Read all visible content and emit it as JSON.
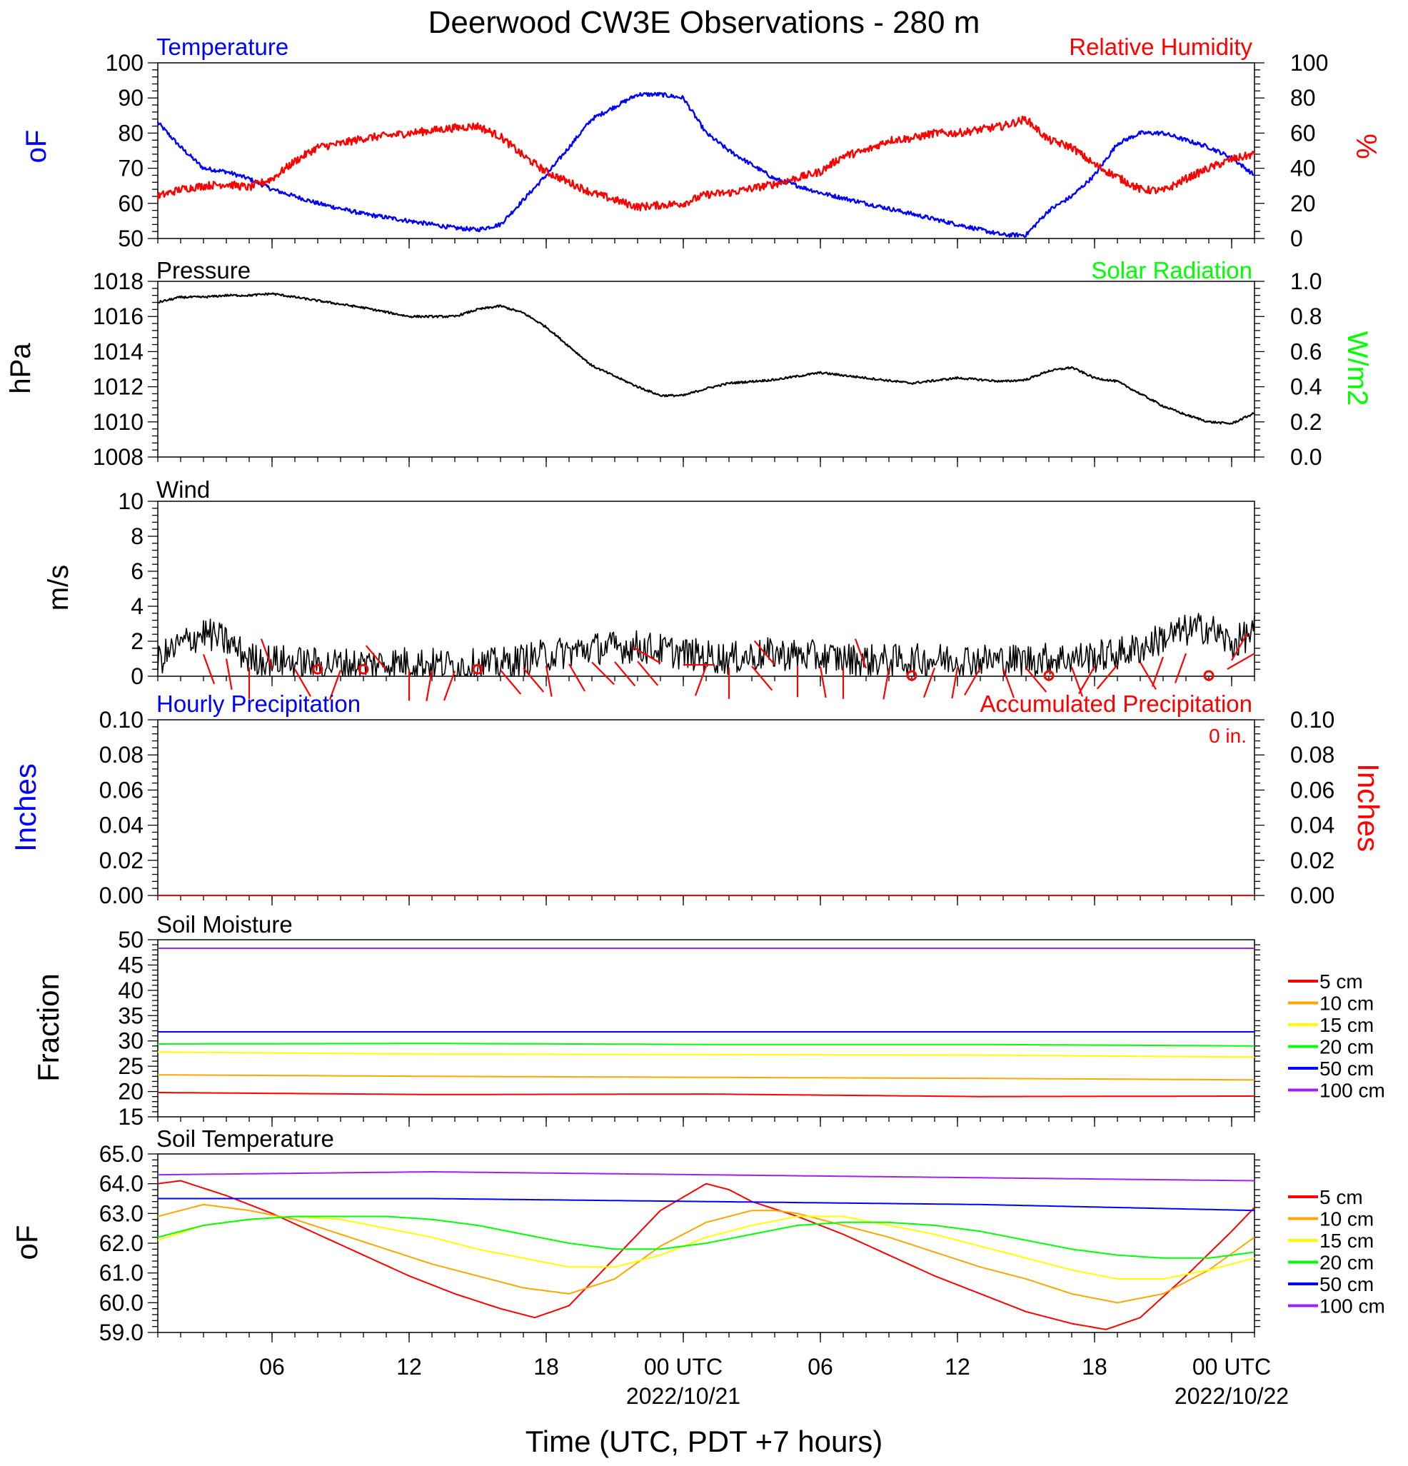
{
  "title": "Deerwood CW3E Observations - 280 m",
  "xlabel": "Time (UTC, PDT +7 hours)",
  "colors": {
    "temp": "#0000ff",
    "rh": "#ff0000",
    "pressure": "#000000",
    "solar": "#00ff00",
    "wind": "#000000",
    "barb": "#ff0000",
    "hourly": "#0000ff",
    "accum": "#ff0000"
  },
  "x_ticks": [
    {
      "hour": 6,
      "label": "06",
      "date": ""
    },
    {
      "hour": 12,
      "label": "12",
      "date": ""
    },
    {
      "hour": 18,
      "label": "18",
      "date": ""
    },
    {
      "hour": 24,
      "label": "00 UTC",
      "date": "2022/10/21"
    },
    {
      "hour": 30,
      "label": "06",
      "date": ""
    },
    {
      "hour": 36,
      "label": "12",
      "date": ""
    },
    {
      "hour": 42,
      "label": "18",
      "date": ""
    },
    {
      "hour": 48,
      "label": "00 UTC",
      "date": "2022/10/22"
    }
  ],
  "panels": {
    "temp_rh": {
      "left_title": "Temperature",
      "right_title": "Relative Humidity",
      "left_ylabel": "oF",
      "right_ylabel": "%",
      "left_ticks": [
        "50",
        "60",
        "70",
        "80",
        "90",
        "100"
      ],
      "right_ticks": [
        "0",
        "20",
        "40",
        "60",
        "80",
        "100"
      ]
    },
    "pressure": {
      "left_title": "Pressure",
      "right_title": "Solar Radiation",
      "left_ylabel": "hPa",
      "right_ylabel": "W/m2",
      "left_ticks": [
        "1008",
        "1010",
        "1012",
        "1014",
        "1016",
        "1018"
      ],
      "right_ticks": [
        "0.0",
        "0.2",
        "0.4",
        "0.6",
        "0.8",
        "1.0"
      ]
    },
    "wind": {
      "left_title": "Wind",
      "left_ylabel": "m/s",
      "left_ticks": [
        "0",
        "2",
        "4",
        "6",
        "8",
        "10"
      ]
    },
    "precip": {
      "left_title": "Hourly Precipitation",
      "right_title": "Accumulated Precipitation",
      "accum_total": "0 in.",
      "left_ylabel": "Inches",
      "right_ylabel": "Inches",
      "left_ticks": [
        "0.00",
        "0.02",
        "0.04",
        "0.06",
        "0.08",
        "0.10"
      ],
      "right_ticks": [
        "0.00",
        "0.02",
        "0.04",
        "0.06",
        "0.08",
        "0.10"
      ]
    },
    "soil_moisture": {
      "left_title": "Soil Moisture",
      "left_ylabel": "Fraction",
      "left_ticks": [
        "15",
        "20",
        "25",
        "30",
        "35",
        "40",
        "45",
        "50"
      ],
      "legend": [
        "5 cm",
        "10 cm",
        "15 cm",
        "20 cm",
        "50 cm",
        "100 cm"
      ]
    },
    "soil_temp": {
      "left_title": "Soil Temperature",
      "left_ylabel": "oF",
      "left_ticks": [
        "59.0",
        "60.0",
        "61.0",
        "62.0",
        "63.0",
        "64.0",
        "65.0"
      ],
      "legend": [
        "5 cm",
        "10 cm",
        "15 cm",
        "20 cm",
        "50 cm",
        "100 cm"
      ]
    }
  },
  "chart_data": [
    {
      "type": "line",
      "panel": "temp_rh",
      "x_unit": "hours since 2022-10-20 00 UTC",
      "xlim": [
        1,
        49
      ],
      "series": [
        {
          "name": "Temperature",
          "axis": "left",
          "ylim": [
            50,
            100
          ],
          "x": [
            1,
            2,
            3,
            4,
            5,
            6,
            8,
            10,
            12,
            14,
            15,
            16,
            18,
            20,
            22,
            23,
            24,
            25,
            26,
            28,
            30,
            32,
            34,
            36,
            38,
            39,
            40,
            41,
            42,
            43,
            44,
            45,
            46,
            47,
            48,
            49
          ],
          "values": [
            83,
            76,
            70,
            69,
            67,
            64,
            60,
            57,
            55,
            53,
            52.5,
            54,
            68,
            84,
            91,
            91,
            90,
            80,
            75,
            67,
            63,
            60,
            57,
            54,
            51,
            51,
            58,
            62,
            68,
            77,
            80,
            80,
            78,
            76,
            73,
            68
          ]
        },
        {
          "name": "Relative Humidity",
          "axis": "right",
          "ylim": [
            0,
            100
          ],
          "x": [
            1,
            2,
            3,
            4,
            5,
            6,
            7,
            8,
            9,
            10,
            12,
            14,
            15,
            16,
            17,
            18,
            20,
            22,
            23,
            24,
            25,
            26,
            28,
            30,
            31,
            32,
            33,
            34,
            35,
            36,
            38,
            39,
            40,
            41,
            42,
            43,
            44,
            45,
            46,
            47,
            48,
            49
          ],
          "values": [
            24,
            28,
            30,
            31,
            29,
            34,
            44,
            52,
            54,
            57,
            60,
            63,
            64,
            58,
            47,
            38,
            26,
            18,
            19,
            20,
            25,
            26,
            31,
            38,
            47,
            50,
            56,
            57,
            60,
            60,
            64,
            68,
            56,
            52,
            42,
            35,
            28,
            27,
            34,
            40,
            45,
            48
          ]
        }
      ]
    },
    {
      "type": "line",
      "panel": "pressure",
      "ylim": [
        1008,
        1018
      ],
      "series": [
        {
          "name": "Pressure",
          "x": [
            1,
            2,
            3,
            4,
            5,
            6,
            8,
            10,
            12,
            14,
            15,
            16,
            17,
            18,
            20,
            22,
            23,
            24,
            25,
            26,
            28,
            30,
            32,
            34,
            36,
            38,
            39,
            40,
            41,
            42,
            43,
            44,
            45,
            46,
            47,
            48,
            49
          ],
          "values": [
            1016.8,
            1017.1,
            1017.1,
            1017.2,
            1017.2,
            1017.3,
            1016.9,
            1016.5,
            1016.0,
            1016.0,
            1016.4,
            1016.6,
            1016.2,
            1015.4,
            1013.2,
            1012.0,
            1011.5,
            1011.5,
            1011.9,
            1012.2,
            1012.4,
            1012.8,
            1012.5,
            1012.2,
            1012.5,
            1012.3,
            1012.4,
            1012.9,
            1013.1,
            1012.5,
            1012.3,
            1011.6,
            1010.9,
            1010.4,
            1010.0,
            1009.9,
            1010.5
          ]
        }
      ]
    },
    {
      "type": "line",
      "panel": "wind",
      "ylim": [
        0,
        10
      ],
      "series": [
        {
          "name": "Wind",
          "x": [
            1,
            2,
            3,
            4,
            5,
            6,
            8,
            10,
            12,
            14,
            16,
            18,
            20,
            22,
            24,
            26,
            28,
            30,
            32,
            34,
            36,
            38,
            40,
            42,
            43,
            44,
            45,
            46,
            47,
            48,
            49
          ],
          "values": [
            0.9,
            1.8,
            2.5,
            2.0,
            1.0,
            0.9,
            0.7,
            0.7,
            0.8,
            0.6,
            0.7,
            1.2,
            1.6,
            1.7,
            1.3,
            1.0,
            1.3,
            1.1,
            0.9,
            0.9,
            1.0,
            0.9,
            1.0,
            1.1,
            1.3,
            1.6,
            2.2,
            2.6,
            2.8,
            1.8,
            2.6
          ]
        }
      ]
    },
    {
      "type": "line",
      "panel": "precip",
      "ylim": [
        0,
        0.1
      ],
      "series": [
        {
          "name": "Hourly Precipitation",
          "x": [
            1,
            49
          ],
          "values": [
            0,
            0
          ]
        },
        {
          "name": "Accumulated Precipitation",
          "x": [
            1,
            49
          ],
          "values": [
            0,
            0
          ]
        }
      ]
    },
    {
      "type": "line",
      "panel": "soil_moisture",
      "ylim": [
        15,
        50
      ],
      "series": [
        {
          "name": "5 cm",
          "x": [
            1,
            13,
            25,
            37,
            49
          ],
          "values": [
            19.8,
            19.4,
            19.5,
            19.0,
            19.1
          ]
        },
        {
          "name": "10 cm",
          "x": [
            1,
            13,
            25,
            37,
            49
          ],
          "values": [
            23.3,
            23.0,
            22.8,
            22.6,
            22.3
          ]
        },
        {
          "name": "15 cm",
          "x": [
            1,
            13,
            25,
            37,
            49
          ],
          "values": [
            27.8,
            27.4,
            27.3,
            27.2,
            26.8
          ]
        },
        {
          "name": "20 cm",
          "x": [
            1,
            13,
            25,
            37,
            49
          ],
          "values": [
            29.4,
            29.5,
            29.3,
            29.3,
            29.0
          ]
        },
        {
          "name": "50 cm",
          "x": [
            1,
            13,
            25,
            37,
            49
          ],
          "values": [
            31.8,
            31.8,
            31.8,
            31.8,
            31.8
          ]
        },
        {
          "name": "100 cm",
          "x": [
            1,
            13,
            25,
            37,
            49
          ],
          "values": [
            48.3,
            48.3,
            48.3,
            48.3,
            48.3
          ]
        }
      ]
    },
    {
      "type": "line",
      "panel": "soil_temp",
      "ylim": [
        59,
        65
      ],
      "series": [
        {
          "name": "5 cm",
          "x": [
            1,
            2,
            4,
            6,
            8,
            10,
            12,
            14,
            16,
            17.5,
            19,
            21,
            23,
            25,
            26,
            27,
            29,
            31,
            33,
            35,
            37,
            39,
            41,
            42.5,
            44,
            46,
            48,
            49
          ],
          "values": [
            64.0,
            64.1,
            63.6,
            63.0,
            62.3,
            61.6,
            60.9,
            60.3,
            59.8,
            59.5,
            59.9,
            61.5,
            63.1,
            64.0,
            63.8,
            63.4,
            62.9,
            62.3,
            61.6,
            60.9,
            60.3,
            59.7,
            59.3,
            59.1,
            59.5,
            60.9,
            62.4,
            63.2
          ]
        },
        {
          "name": "10 cm",
          "x": [
            1,
            3,
            5,
            7,
            9,
            11,
            13,
            15,
            17,
            19,
            21,
            23,
            25,
            27,
            28,
            29,
            31,
            33,
            35,
            37,
            39,
            41,
            43,
            45,
            47,
            49
          ],
          "values": [
            62.9,
            63.3,
            63.1,
            62.8,
            62.3,
            61.8,
            61.3,
            60.9,
            60.5,
            60.3,
            60.8,
            61.9,
            62.7,
            63.1,
            63.1,
            63.0,
            62.6,
            62.2,
            61.7,
            61.2,
            60.8,
            60.3,
            60.0,
            60.3,
            61.1,
            62.2
          ]
        },
        {
          "name": "15 cm",
          "x": [
            1,
            3,
            5,
            7,
            9,
            11,
            13,
            15,
            17,
            19,
            21,
            23,
            25,
            27,
            29,
            31,
            33,
            35,
            37,
            39,
            41,
            43,
            45,
            47,
            49
          ],
          "values": [
            62.1,
            62.6,
            62.8,
            62.9,
            62.8,
            62.5,
            62.2,
            61.8,
            61.5,
            61.2,
            61.2,
            61.6,
            62.2,
            62.6,
            62.9,
            62.9,
            62.6,
            62.3,
            61.9,
            61.5,
            61.1,
            60.8,
            60.8,
            61.1,
            61.5
          ]
        },
        {
          "name": "20 cm",
          "x": [
            1,
            3,
            5,
            7,
            9,
            11,
            13,
            15,
            17,
            19,
            21,
            23,
            25,
            27,
            29,
            31,
            33,
            35,
            37,
            39,
            41,
            43,
            45,
            47,
            49
          ],
          "values": [
            62.2,
            62.6,
            62.8,
            62.9,
            62.9,
            62.9,
            62.8,
            62.6,
            62.3,
            62.0,
            61.8,
            61.8,
            62.0,
            62.3,
            62.6,
            62.7,
            62.7,
            62.6,
            62.4,
            62.1,
            61.8,
            61.6,
            61.5,
            61.5,
            61.7
          ]
        },
        {
          "name": "50 cm",
          "x": [
            1,
            13,
            25,
            37,
            49
          ],
          "values": [
            63.5,
            63.5,
            63.4,
            63.3,
            63.1
          ]
        },
        {
          "name": "100 cm",
          "x": [
            1,
            13,
            25,
            37,
            49
          ],
          "values": [
            64.3,
            64.4,
            64.3,
            64.2,
            64.1
          ]
        }
      ]
    }
  ],
  "wind_barbs": {
    "x": [
      3,
      4,
      5,
      6,
      7,
      8,
      9,
      10,
      11,
      12,
      13,
      14,
      15,
      16,
      17,
      18,
      19,
      20,
      21,
      22,
      23,
      24,
      25,
      26,
      27,
      28,
      29,
      30,
      31,
      32,
      33,
      34,
      35,
      36,
      37,
      38,
      39,
      40,
      41,
      42,
      43,
      44,
      45,
      46,
      47,
      48,
      49
    ],
    "dir": [
      160,
      170,
      180,
      340,
      150,
      0,
      200,
      0,
      320,
      180,
      190,
      200,
      0,
      140,
      140,
      170,
      150,
      135,
      140,
      140,
      300,
      90,
      200,
      180,
      140,
      320,
      180,
      170,
      180,
      340,
      190,
      0,
      200,
      190,
      210,
      160,
      140,
      0,
      160,
      210,
      220,
      150,
      200,
      200,
      0,
      30,
      240
    ]
  },
  "soil_colors": [
    "#ff0000",
    "#ffa500",
    "#ffff00",
    "#00ff00",
    "#0000ff",
    "#a020f0"
  ]
}
